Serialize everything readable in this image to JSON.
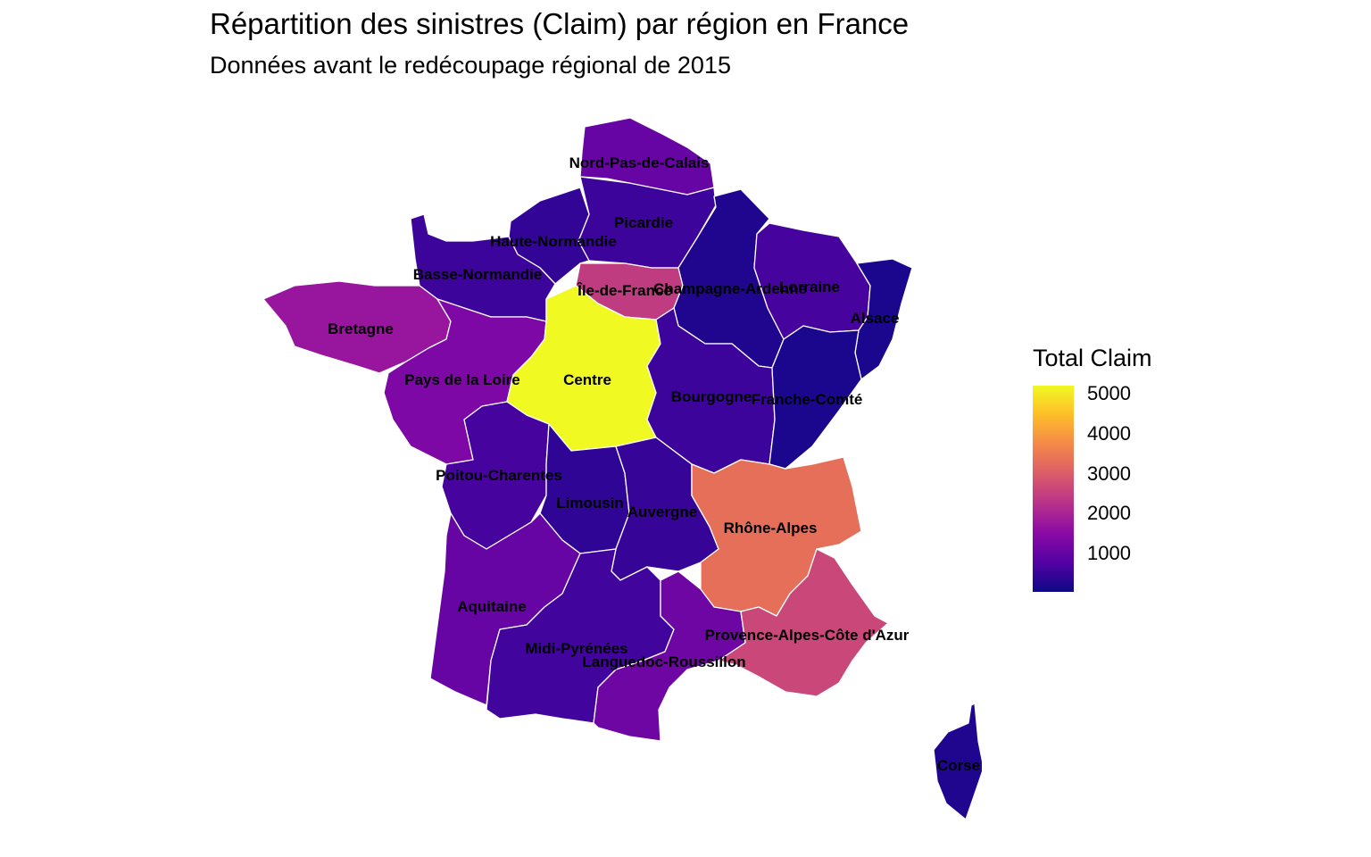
{
  "title": "Répartition des sinistres (Claim) par région en France",
  "subtitle": "Données avant le redécoupage régional de 2015",
  "legend": {
    "title": "Total Claim",
    "ticks": [
      "5000",
      "4000",
      "3000",
      "2000",
      "1000"
    ],
    "palette": "plasma",
    "colors": [
      "#0d0887",
      "#5302a3",
      "#8b0aa5",
      "#b83289",
      "#db5c68",
      "#f48849",
      "#febd2a",
      "#f0f921"
    ]
  },
  "map_data": {
    "type": "choropleth",
    "value_label": "Total Claim",
    "range": [
      0,
      5200
    ],
    "regions": [
      {
        "name": "Nord-Pas-de-Calais",
        "value": 1000
      },
      {
        "name": "Picardie",
        "value": 500
      },
      {
        "name": "Haute-Normandie",
        "value": 400
      },
      {
        "name": "Basse-Normandie",
        "value": 500
      },
      {
        "name": "Île-de-France",
        "value": 2400
      },
      {
        "name": "Champagne-Ardenne",
        "value": 200
      },
      {
        "name": "Lorraine",
        "value": 600
      },
      {
        "name": "Alsace",
        "value": 150
      },
      {
        "name": "Bretagne",
        "value": 1700
      },
      {
        "name": "Pays de la Loire",
        "value": 1300
      },
      {
        "name": "Centre",
        "value": 5200
      },
      {
        "name": "Bourgogne",
        "value": 500
      },
      {
        "name": "Franche-Comté",
        "value": 150
      },
      {
        "name": "Poitou-Charentes",
        "value": 600
      },
      {
        "name": "Limousin",
        "value": 350
      },
      {
        "name": "Auvergne",
        "value": 450
      },
      {
        "name": "Rhône-Alpes",
        "value": 3300
      },
      {
        "name": "Aquitaine",
        "value": 1000
      },
      {
        "name": "Midi-Pyrénées",
        "value": 550
      },
      {
        "name": "Languedoc-Roussillon",
        "value": 1100
      },
      {
        "name": "Provence-Alpes-Côte d'Azur",
        "value": 2600
      },
      {
        "name": "Corse",
        "value": 200
      }
    ]
  }
}
